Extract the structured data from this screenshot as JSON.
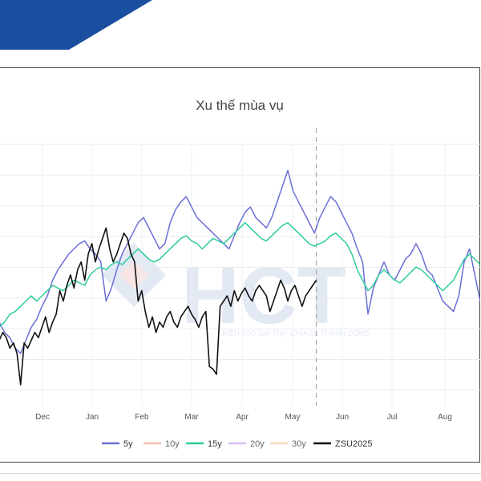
{
  "chart_data": {
    "type": "line",
    "title": "Xu thế mùa vụ",
    "x_ticks": [
      "Dec",
      "Jan",
      "Feb",
      "Mar",
      "Apr",
      "May",
      "Jun",
      "Jul",
      "Aug"
    ],
    "x_range": [
      0,
      270
    ],
    "y_range": [
      0,
      100
    ],
    "grid": true,
    "legend_position": "bottom",
    "vline_x": 178,
    "watermark": {
      "logo": "HCT",
      "tagline": "KIẾN TẠO GIÁ TRỊ - CHIA SẺ THÀNH CÔNG"
    },
    "series": [
      {
        "name": "5y",
        "color": "#6b6fd6",
        "x": [
          0,
          3,
          6,
          9,
          12,
          15,
          18,
          21,
          24,
          27,
          30,
          33,
          36,
          39,
          42,
          45,
          48,
          51,
          54,
          57,
          60,
          63,
          66,
          69,
          72,
          75,
          78,
          81,
          84,
          87,
          90,
          93,
          96,
          99,
          102,
          105,
          108,
          111,
          114,
          117,
          120,
          123,
          126,
          129,
          132,
          135,
          138,
          141,
          144,
          147,
          150,
          153,
          156,
          159,
          162,
          165,
          168,
          171,
          174,
          177,
          180,
          183,
          186,
          189,
          192,
          195,
          198,
          201,
          204,
          207,
          210,
          213,
          216,
          219,
          222,
          225,
          228,
          231,
          234,
          237,
          240,
          243,
          246,
          249,
          252,
          255,
          258,
          261,
          264,
          267,
          270
        ],
        "values": [
          32,
          28,
          26,
          22,
          20,
          25,
          30,
          33,
          38,
          42,
          48,
          52,
          55,
          58,
          60,
          62,
          63,
          60,
          58,
          55,
          40,
          45,
          52,
          58,
          62,
          66,
          70,
          72,
          68,
          64,
          60,
          62,
          70,
          75,
          78,
          80,
          76,
          72,
          70,
          68,
          66,
          64,
          62,
          60,
          65,
          70,
          74,
          76,
          72,
          70,
          68,
          72,
          78,
          84,
          90,
          82,
          78,
          74,
          70,
          66,
          72,
          76,
          80,
          78,
          74,
          70,
          66,
          60,
          55,
          35,
          45,
          50,
          55,
          50,
          48,
          52,
          56,
          58,
          62,
          58,
          52,
          50,
          45,
          40,
          38,
          36,
          42,
          55,
          60,
          50,
          40
        ]
      },
      {
        "name": "15y",
        "color": "#2ecc9a",
        "x": [
          0,
          3,
          6,
          9,
          12,
          15,
          18,
          21,
          24,
          27,
          30,
          33,
          36,
          39,
          42,
          45,
          48,
          51,
          54,
          57,
          60,
          63,
          66,
          69,
          72,
          75,
          78,
          81,
          84,
          87,
          90,
          93,
          96,
          99,
          102,
          105,
          108,
          111,
          114,
          117,
          120,
          123,
          126,
          129,
          132,
          135,
          138,
          141,
          144,
          147,
          150,
          153,
          156,
          159,
          162,
          165,
          168,
          171,
          174,
          177,
          180,
          183,
          186,
          189,
          192,
          195,
          198,
          201,
          204,
          207,
          210,
          213,
          216,
          219,
          222,
          225,
          228,
          231,
          234,
          237,
          240,
          243,
          246,
          249,
          252,
          255,
          258,
          261,
          264,
          267,
          270
        ],
        "values": [
          30,
          32,
          35,
          36,
          38,
          40,
          42,
          40,
          42,
          44,
          46,
          45,
          44,
          46,
          48,
          47,
          46,
          50,
          52,
          53,
          52,
          54,
          55,
          54,
          56,
          58,
          60,
          58,
          56,
          55,
          56,
          58,
          60,
          62,
          64,
          65,
          63,
          62,
          60,
          62,
          64,
          63,
          62,
          64,
          66,
          68,
          70,
          68,
          66,
          64,
          63,
          65,
          67,
          69,
          70,
          68,
          66,
          64,
          62,
          61,
          62,
          63,
          65,
          66,
          64,
          62,
          58,
          52,
          48,
          44,
          46,
          50,
          52,
          50,
          48,
          47,
          49,
          51,
          53,
          52,
          50,
          48,
          46,
          44,
          46,
          48,
          52,
          56,
          58,
          56,
          54
        ]
      },
      {
        "name": "ZSU2025",
        "color": "#111111",
        "x": [
          0,
          2,
          4,
          6,
          8,
          10,
          12,
          14,
          16,
          18,
          20,
          22,
          24,
          26,
          28,
          30,
          32,
          34,
          36,
          38,
          40,
          42,
          44,
          46,
          48,
          50,
          52,
          54,
          56,
          58,
          60,
          62,
          64,
          66,
          68,
          70,
          72,
          74,
          76,
          78,
          80,
          82,
          84,
          86,
          88,
          90,
          92,
          94,
          96,
          98,
          100,
          102,
          104,
          106,
          108,
          110,
          112,
          114,
          116,
          118,
          120,
          122,
          124,
          126,
          128,
          130,
          132,
          134,
          136,
          138,
          140,
          142,
          144,
          146,
          148,
          150,
          152,
          154,
          156,
          158,
          160,
          162,
          164,
          166,
          168,
          170,
          172,
          174,
          176,
          178
        ],
        "values": [
          25,
          28,
          26,
          22,
          24,
          20,
          8,
          24,
          22,
          25,
          28,
          26,
          30,
          34,
          28,
          32,
          35,
          44,
          40,
          46,
          50,
          45,
          52,
          55,
          48,
          58,
          62,
          55,
          60,
          64,
          68,
          60,
          55,
          58,
          62,
          66,
          64,
          58,
          55,
          40,
          44,
          36,
          30,
          34,
          28,
          32,
          30,
          34,
          36,
          32,
          30,
          34,
          36,
          38,
          35,
          33,
          30,
          34,
          36,
          15,
          14,
          12,
          38,
          40,
          42,
          38,
          44,
          40,
          43,
          45,
          42,
          40,
          44,
          46,
          44,
          42,
          36,
          40,
          44,
          48,
          45,
          40,
          44,
          46,
          42,
          38,
          42,
          44,
          46,
          48
        ]
      },
      {
        "name": "10y",
        "color": "#f4a58f",
        "x": [],
        "values": []
      },
      {
        "name": "20y",
        "color": "#c9a7f2",
        "x": [],
        "values": []
      },
      {
        "name": "30y",
        "color": "#f7c9a3",
        "x": [],
        "values": []
      }
    ],
    "legend": [
      {
        "name": "5y",
        "color": "#6b6fd6",
        "active": true
      },
      {
        "name": "10y",
        "color": "#f4a58f",
        "active": false
      },
      {
        "name": "15y",
        "color": "#2ecc9a",
        "active": true
      },
      {
        "name": "20y",
        "color": "#c9a7f2",
        "active": false
      },
      {
        "name": "30y",
        "color": "#f7c9a3",
        "active": false
      },
      {
        "name": "ZSU2025",
        "color": "#111111",
        "active": true
      }
    ]
  }
}
